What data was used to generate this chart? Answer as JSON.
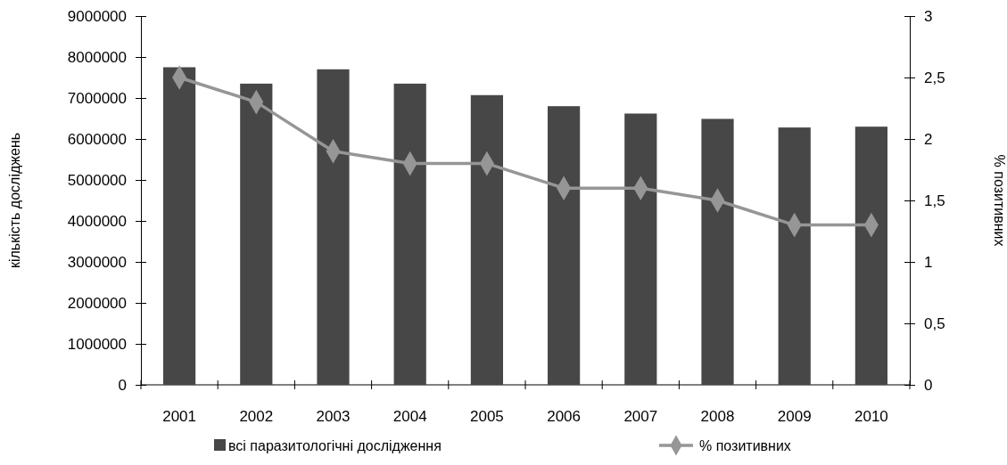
{
  "chart_data": {
    "type": "bar",
    "categories": [
      "2001",
      "2002",
      "2003",
      "2004",
      "2005",
      "2006",
      "2007",
      "2008",
      "2009",
      "2010"
    ],
    "ylabel": "кількість досліджень",
    "y2label": "% позитивних",
    "ylim": [
      0,
      9000000
    ],
    "yticks": [
      0,
      1000000,
      2000000,
      3000000,
      4000000,
      5000000,
      6000000,
      7000000,
      8000000,
      9000000
    ],
    "y2lim": [
      0,
      3
    ],
    "y2ticks": [
      0,
      {
        "value": 0.5,
        "label": "0,5"
      },
      1,
      {
        "value": 1.5,
        "label": "1,5"
      },
      2,
      {
        "value": 2.5,
        "label": "2,5"
      },
      3
    ],
    "grid": false,
    "legend": "bottom",
    "series": [
      {
        "name": "всі паразитологічні дослідження",
        "color": "#474747",
        "values": [
          7750000,
          7350000,
          7700000,
          7350000,
          7070000,
          6800000,
          6620000,
          6490000,
          6280000,
          6300000
        ]
      },
      {
        "name": "% позитивних",
        "type": "line",
        "axis": "y2",
        "color": "#969696",
        "marker": "diamond",
        "values": [
          2.5,
          2.3,
          1.9,
          1.8,
          1.8,
          1.6,
          1.6,
          1.5,
          1.3,
          1.3
        ]
      }
    ]
  }
}
